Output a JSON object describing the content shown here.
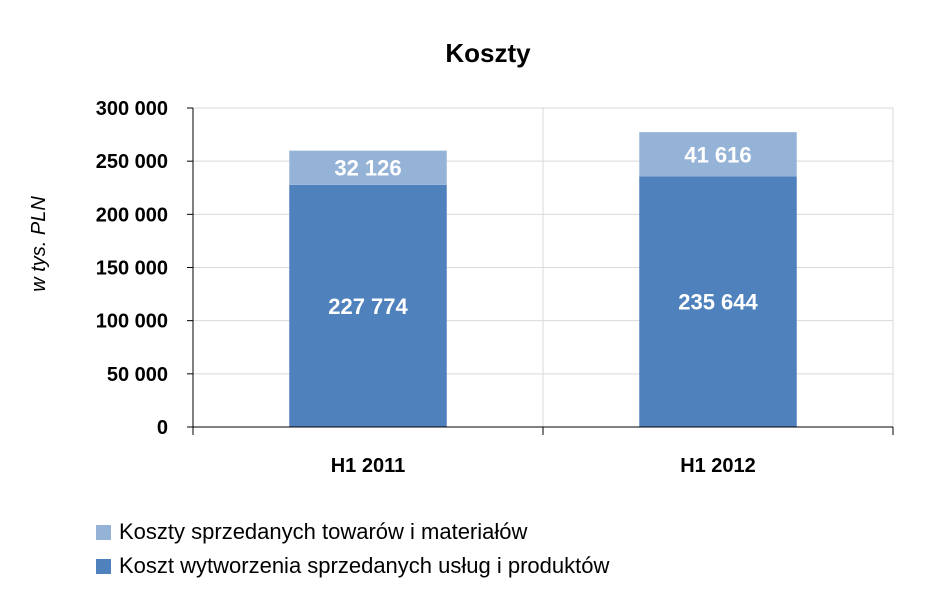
{
  "chart_data": {
    "type": "bar",
    "stacked": true,
    "title": "Koszty",
    "ylabel": "w tys. PLN",
    "xlabel": "",
    "categories": [
      "H1 2011",
      "H1 2012"
    ],
    "series": [
      {
        "name": "Koszt wytworzenia sprzedanych usług i produktów",
        "values": [
          227774,
          235644
        ],
        "value_labels": [
          "227 774",
          "235 644"
        ],
        "color": "#4F81BD"
      },
      {
        "name": "Koszty sprzedanych towarów i materiałów",
        "values": [
          32126,
          41616
        ],
        "value_labels": [
          "32 126",
          "41 616"
        ],
        "color": "#95B3D7"
      }
    ],
    "ylim": [
      0,
      300000
    ],
    "yticks": [
      0,
      50000,
      100000,
      150000,
      200000,
      250000,
      300000
    ],
    "ytick_labels": [
      "0",
      "50 000",
      "100 000",
      "150 000",
      "200 000",
      "250 000",
      "300 000"
    ],
    "grid": true,
    "legend_position": "bottom-left",
    "legend_order": [
      1,
      0
    ]
  }
}
